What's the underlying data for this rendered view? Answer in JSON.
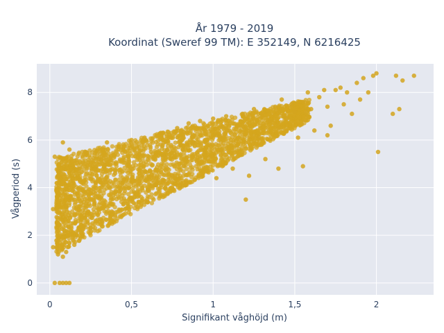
{
  "chart_data": {
    "type": "scatter",
    "title_line1": "År 1979 - 2019",
    "title_line2": "Koordinat (Sweref 99 TM): E 352149, N 6216425",
    "xlabel": "Signifikant våghöjd (m)",
    "ylabel": "Vågperiod (s)",
    "xlim": [
      -0.08,
      2.35
    ],
    "ylim": [
      -0.5,
      9.2
    ],
    "xticks": [
      0,
      0.5,
      1,
      1.5,
      2
    ],
    "xtick_labels": [
      "0",
      "0,5",
      "1",
      "1,5",
      "2"
    ],
    "yticks": [
      0,
      2,
      4,
      6,
      8
    ],
    "ytick_labels": [
      "0",
      "2",
      "4",
      "6",
      "8"
    ],
    "grid": true,
    "marker_color": "#d4a51e",
    "plot_bg": "#e5e8f0",
    "series": [
      {
        "values": [
          [
            0.03,
            0.0
          ],
          [
            0.06,
            0.0
          ],
          [
            0.08,
            0.0
          ],
          [
            0.1,
            0.0
          ],
          [
            0.12,
            0.0
          ],
          [
            0.02,
            1.5
          ],
          [
            0.02,
            3.1
          ],
          [
            0.03,
            5.3
          ],
          [
            0.05,
            1.2
          ],
          [
            0.05,
            4.5
          ],
          [
            0.08,
            1.1
          ],
          [
            0.08,
            5.9
          ],
          [
            0.1,
            1.3
          ],
          [
            0.1,
            3.2
          ],
          [
            0.12,
            5.6
          ],
          [
            0.15,
            1.6
          ],
          [
            0.15,
            3.5
          ],
          [
            0.18,
            4.8
          ],
          [
            0.2,
            2.0
          ],
          [
            0.22,
            5.5
          ],
          [
            0.25,
            2.3
          ],
          [
            0.28,
            4.2
          ],
          [
            0.3,
            5.2
          ],
          [
            0.32,
            2.6
          ],
          [
            0.35,
            5.9
          ],
          [
            0.38,
            3.0
          ],
          [
            0.4,
            4.6
          ],
          [
            0.42,
            5.7
          ],
          [
            0.45,
            3.3
          ],
          [
            0.48,
            5.0
          ],
          [
            0.5,
            6.0
          ],
          [
            0.52,
            3.6
          ],
          [
            0.55,
            5.4
          ],
          [
            0.58,
            6.1
          ],
          [
            0.6,
            3.9
          ],
          [
            0.62,
            5.5
          ],
          [
            0.65,
            4.1
          ],
          [
            0.68,
            6.3
          ],
          [
            0.7,
            4.3
          ],
          [
            0.72,
            5.6
          ],
          [
            0.75,
            4.5
          ],
          [
            0.78,
            6.5
          ],
          [
            0.8,
            5.8
          ],
          [
            0.82,
            4.9
          ],
          [
            0.85,
            6.7
          ],
          [
            0.88,
            5.9
          ],
          [
            0.9,
            5.1
          ],
          [
            0.92,
            6.8
          ],
          [
            0.95,
            6.0
          ],
          [
            0.98,
            5.3
          ],
          [
            1.0,
            6.9
          ],
          [
            1.02,
            6.2
          ],
          [
            1.05,
            5.6
          ],
          [
            1.08,
            7.0
          ],
          [
            1.1,
            6.4
          ],
          [
            1.12,
            4.8
          ],
          [
            1.15,
            6.6
          ],
          [
            1.18,
            7.1
          ],
          [
            1.2,
            5.9
          ],
          [
            1.22,
            6.7
          ],
          [
            1.25,
            7.3
          ],
          [
            1.28,
            6.1
          ],
          [
            1.3,
            7.0
          ],
          [
            1.32,
            5.2
          ],
          [
            1.35,
            6.8
          ],
          [
            1.38,
            7.4
          ],
          [
            1.4,
            6.5
          ],
          [
            1.42,
            7.7
          ],
          [
            1.45,
            6.9
          ],
          [
            1.48,
            7.5
          ],
          [
            1.5,
            7.2
          ],
          [
            1.52,
            6.1
          ],
          [
            1.55,
            7.6
          ],
          [
            1.58,
            8.0
          ],
          [
            1.6,
            7.3
          ],
          [
            1.62,
            6.4
          ],
          [
            1.65,
            7.8
          ],
          [
            1.68,
            8.1
          ],
          [
            1.7,
            7.4
          ],
          [
            1.72,
            6.6
          ],
          [
            1.75,
            8.1
          ],
          [
            1.78,
            8.2
          ],
          [
            1.8,
            7.5
          ],
          [
            1.82,
            8.0
          ],
          [
            1.85,
            7.1
          ],
          [
            1.88,
            8.4
          ],
          [
            1.9,
            7.7
          ],
          [
            1.92,
            8.6
          ],
          [
            1.95,
            8.0
          ],
          [
            1.98,
            8.7
          ],
          [
            2.0,
            8.8
          ],
          [
            2.01,
            5.5
          ],
          [
            2.1,
            7.1
          ],
          [
            2.12,
            8.7
          ],
          [
            2.14,
            7.3
          ],
          [
            2.16,
            8.5
          ],
          [
            2.23,
            8.7
          ],
          [
            0.6,
            3.4
          ],
          [
            0.8,
            4.1
          ],
          [
            1.02,
            4.4
          ],
          [
            1.2,
            3.5
          ],
          [
            1.22,
            4.5
          ],
          [
            1.4,
            4.8
          ],
          [
            1.55,
            4.9
          ],
          [
            1.7,
            6.2
          ]
        ]
      }
    ]
  }
}
